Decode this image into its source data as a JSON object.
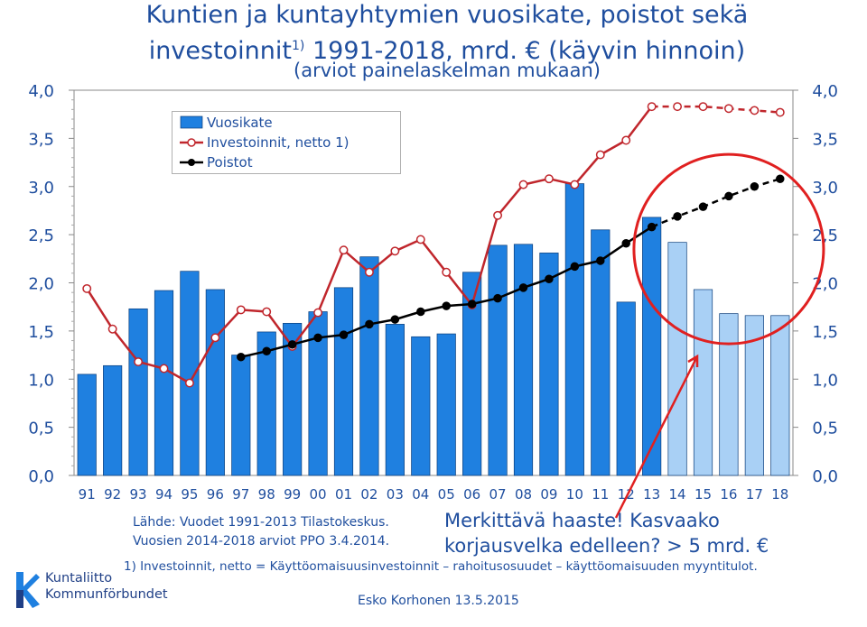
{
  "title_line1": "Kuntien ja kuntayhtymien vuosikate, poistot sekä",
  "title_line2_pre": "investoinnit",
  "title_sup": "1)",
  "title_line2_post": " 1991-2018, mrd. € (käyvin hinnoin)",
  "subtitle": "(arviot painelaskelman mukaan)",
  "source_line1": "Lähde: Vuodet 1991-2013 Tilastokeskus.",
  "source_line2": "Vuosien 2014-2018 arviot PPO 3.4.2014.",
  "challenge_line1": "Merkittävä haaste! Kasvaako",
  "challenge_line2": "korjausvelka edelleen? > 5 mrd. €",
  "footnote": "1) Investoinnit, netto = Käyttöomaisuusinvestoinnit – rahoitusosuudet – käyttöomaisuuden myyntitulot.",
  "author": "Esko Korhonen 13.5.2015",
  "logo": {
    "line1": "Kuntaliitto",
    "line2": "Kommunförbundet"
  },
  "colors": {
    "bar": "#1f80e0",
    "bar_forecast": "#a9d0f5",
    "investment": "#c0262c",
    "depreciation": "#000000",
    "text": "#1f4e9e",
    "circle": "#e02020"
  },
  "chart_data": {
    "type": "bar",
    "categories": [
      "91",
      "92",
      "93",
      "94",
      "95",
      "96",
      "97",
      "98",
      "99",
      "00",
      "01",
      "02",
      "03",
      "04",
      "05",
      "06",
      "07",
      "08",
      "09",
      "10",
      "11",
      "12",
      "13",
      "14",
      "15",
      "16",
      "17",
      "18"
    ],
    "ylim": [
      0,
      4
    ],
    "yticks": [
      "0,0",
      "0,5",
      "1,0",
      "1,5",
      "2,0",
      "2,5",
      "3,0",
      "3,5",
      "4,0"
    ],
    "legend_placement": "top-left",
    "series": [
      {
        "name": "Vuosikate",
        "kind": "bar",
        "values": [
          1.05,
          1.14,
          1.73,
          1.92,
          2.12,
          1.93,
          1.25,
          1.49,
          1.58,
          1.7,
          1.95,
          2.27,
          1.57,
          1.44,
          1.47,
          2.11,
          2.39,
          2.4,
          2.31,
          3.03,
          2.55,
          1.8,
          2.68,
          2.42,
          1.93,
          1.68,
          1.66,
          1.66
        ],
        "forecast_from": "14"
      },
      {
        "name": "Investoinnit, netto 1)",
        "kind": "line",
        "marker": "open-circle",
        "values": [
          1.94,
          1.52,
          1.18,
          1.11,
          0.96,
          1.43,
          1.72,
          1.7,
          1.34,
          1.69,
          2.34,
          2.11,
          2.33,
          2.45,
          2.11,
          1.77,
          2.7,
          3.02,
          3.08,
          3.02,
          3.33,
          3.48,
          3.83,
          3.83,
          3.83,
          3.81,
          3.79,
          3.77
        ],
        "forecast_from": "13"
      },
      {
        "name": "Poistot",
        "kind": "line",
        "marker": "filled-circle",
        "values": [
          null,
          null,
          null,
          null,
          null,
          null,
          1.23,
          1.29,
          1.36,
          1.43,
          1.46,
          1.57,
          1.62,
          1.7,
          1.76,
          1.78,
          1.84,
          1.95,
          2.04,
          2.17,
          2.23,
          2.41,
          2.58,
          2.69,
          2.79,
          2.9,
          3.0,
          3.08
        ],
        "forecast_from": "13"
      }
    ]
  }
}
